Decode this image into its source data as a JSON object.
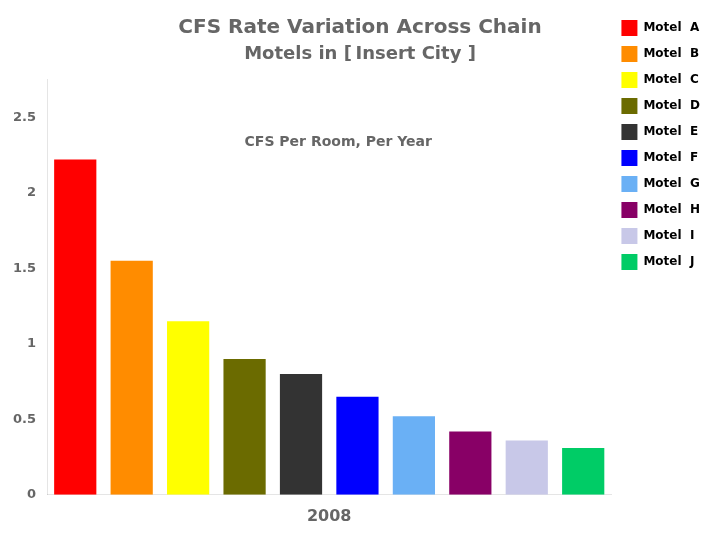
{
  "chart_data": {
    "type": "bar",
    "title": "CFS Rate Variation Across Chain",
    "subtitle": "Motels in [ Insert City ]",
    "xlabel": "2008",
    "annotation": "CFS Per Room, Per Year",
    "categories": [
      "Motel  A",
      "Motel  B",
      "Motel  C",
      "Motel  D",
      "Motel  E",
      "Motel  F",
      "Motel  G",
      "Motel  H",
      "Motel  I",
      "Motel  J"
    ],
    "values": [
      2.22,
      1.55,
      1.15,
      0.9,
      0.8,
      0.65,
      0.52,
      0.42,
      0.36,
      0.31
    ],
    "colors": [
      "#ff0000",
      "#ff8c00",
      "#ffff00",
      "#6b6b00",
      "#333333",
      "#0000ff",
      "#6ab0f5",
      "#880066",
      "#c8c8e8",
      "#00cc66"
    ],
    "ylim": [
      0,
      2.75
    ],
    "yticks": [
      0,
      0.5,
      1,
      1.5,
      2,
      2.5
    ],
    "grid": false,
    "legend": "right",
    "tick_labels": "y"
  }
}
